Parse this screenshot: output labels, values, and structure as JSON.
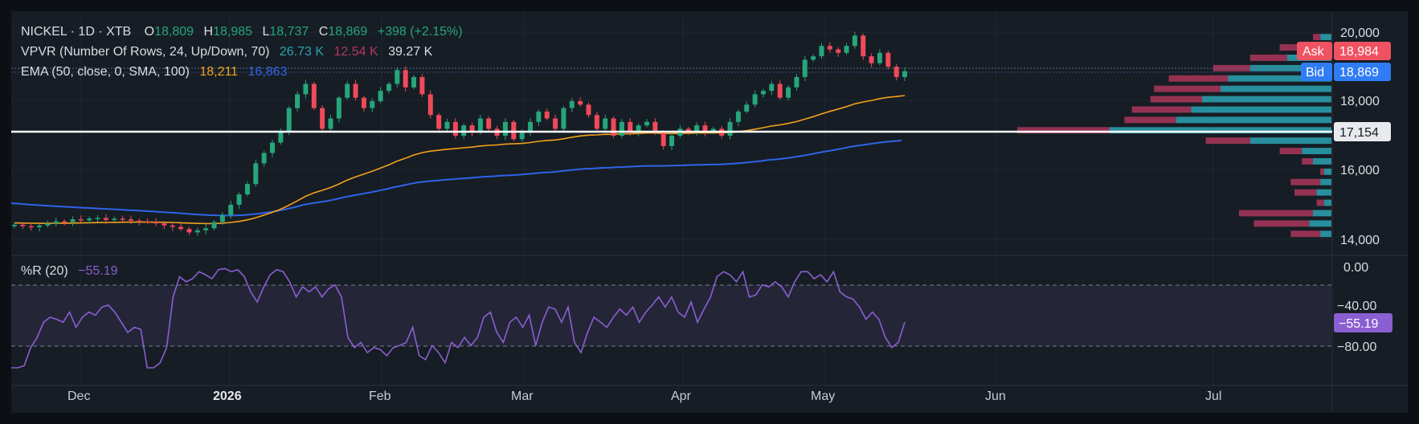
{
  "legend": {
    "symbol": "NICKEL · 1D · XTB",
    "o_label": "O",
    "o_value": "18,809",
    "h_label": "H",
    "h_value": "18,985",
    "l_label": "L",
    "l_value": "18,737",
    "c_label": "C",
    "c_value": "18,869",
    "change": "+398 (+2.15%)",
    "vpvr_label": "VPVR (Number Of Rows, 24, Up/Down, 70)",
    "vpvr_up": "26.73 K",
    "vpvr_down": "12.54 K",
    "vpvr_total": "39.27 K",
    "ema_label": "EMA (50, close, 0, SMA, 100)",
    "ema_fast": "18,211",
    "ema_slow": "16,863",
    "wr_label": "%R (20)",
    "wr_value": "−55.19"
  },
  "badges": {
    "ask_label": "Ask",
    "ask_value": "18,984",
    "bid_label": "Bid",
    "bid_value": "18,869",
    "hline_value": "17,154",
    "wr_value": "−55.19"
  },
  "colors": {
    "background": "#161d24",
    "up": "#26a67a",
    "down": "#ef4a5a",
    "ema_fast": "#f3a11e",
    "ema_slow": "#2f63e8",
    "wr_line": "#8a5fd1",
    "vp_up": "#2aa3b3",
    "vp_down": "#b5385f",
    "ask": "#f05262",
    "bid": "#2f7cf4"
  },
  "chart_data": [
    {
      "type": "candlestick",
      "price_axis_ticks": [
        "20,000",
        "18,000",
        "16,000",
        "14,000"
      ],
      "ylim": [
        13600,
        20500
      ],
      "x_labels": [
        "Dec",
        "2026",
        "Feb",
        "Mar",
        "Apr",
        "May",
        "Jun",
        "Jul"
      ],
      "date_range": [
        "2025-11-20",
        "2026-05-20"
      ],
      "horizontal_line": 17154,
      "close_series_approx": [
        14420,
        14380,
        14350,
        14400,
        14460,
        14520,
        14500,
        14580,
        14550,
        14600,
        14620,
        14560,
        14600,
        14580,
        14540,
        14520,
        14500,
        14460,
        14400,
        14360,
        14300,
        14200,
        14260,
        14320,
        14500,
        14700,
        15000,
        15300,
        15600,
        16200,
        16500,
        16800,
        17100,
        17800,
        18200,
        18500,
        17800,
        17200,
        17500,
        18100,
        18500,
        18100,
        17800,
        18000,
        18300,
        18500,
        18900,
        18400,
        18700,
        18200,
        17600,
        17200,
        17400,
        17000,
        17300,
        17100,
        17500,
        17200,
        17000,
        17400,
        16900,
        17100,
        17400,
        17700,
        17500,
        17200,
        17800,
        18000,
        17900,
        17600,
        17200,
        17500,
        17000,
        17400,
        17100,
        17300,
        17400,
        17100,
        16700,
        17000,
        17200,
        17100,
        17300,
        17100,
        17200,
        17000,
        17400,
        17700,
        17900,
        18200,
        18300,
        18500,
        18100,
        18400,
        18700,
        19200,
        19300,
        19600,
        19500,
        19400,
        19600,
        19900,
        19300,
        19100,
        19400,
        19000,
        18700,
        18869
      ],
      "series": [
        {
          "name": "EMA (50, close, 0, SMA, 100)",
          "last": 18211
        },
        {
          "name": "EMA 100",
          "last": 16863
        }
      ]
    },
    {
      "type": "volume_profile",
      "total": "39.27 K",
      "up": "26.73 K",
      "down": "12.54 K",
      "rows": [
        {
          "price": 19850,
          "up": 3,
          "down": 2
        },
        {
          "price": 19550,
          "up": 6,
          "down": 8
        },
        {
          "price": 19250,
          "up": 12,
          "down": 10
        },
        {
          "price": 18950,
          "up": 22,
          "down": 10
        },
        {
          "price": 18650,
          "up": 28,
          "down": 16
        },
        {
          "price": 18350,
          "up": 30,
          "down": 18
        },
        {
          "price": 18050,
          "up": 35,
          "down": 14
        },
        {
          "price": 17750,
          "up": 38,
          "down": 16
        },
        {
          "price": 17450,
          "up": 42,
          "down": 14
        },
        {
          "price": 17150,
          "up": 60,
          "down": 25
        },
        {
          "price": 16850,
          "up": 22,
          "down": 12
        },
        {
          "price": 16550,
          "up": 8,
          "down": 6
        },
        {
          "price": 16250,
          "up": 5,
          "down": 3
        },
        {
          "price": 15950,
          "up": 2,
          "down": 1
        },
        {
          "price": 15650,
          "up": 3,
          "down": 8
        },
        {
          "price": 15350,
          "up": 4,
          "down": 6
        },
        {
          "price": 15050,
          "up": 2,
          "down": 2
        },
        {
          "price": 14750,
          "up": 5,
          "down": 20
        },
        {
          "price": 14450,
          "up": 6,
          "down": 15
        },
        {
          "price": 14150,
          "up": 3,
          "down": 8
        }
      ]
    },
    {
      "type": "line",
      "indicator": "%R (20)",
      "yaxis_ticks": [
        "0.00",
        "−40.00",
        "−80.00"
      ],
      "ylim": [
        -100,
        0
      ],
      "bands": [
        -20,
        -80
      ],
      "last": -55.19,
      "values": [
        -100,
        -100,
        -98,
        -80,
        -70,
        -55,
        -50,
        -52,
        -55,
        -45,
        -60,
        -50,
        -45,
        -48,
        -40,
        -38,
        -45,
        -55,
        -65,
        -60,
        -62,
        -100,
        -100,
        -95,
        -80,
        -30,
        -10,
        -15,
        -12,
        -5,
        -8,
        -12,
        -3,
        -2,
        -5,
        -3,
        -10,
        -25,
        -35,
        -20,
        -8,
        -3,
        -5,
        -15,
        -30,
        -20,
        -25,
        -20,
        -30,
        -22,
        -18,
        -30,
        -70,
        -80,
        -75,
        -85,
        -80,
        -82,
        -88,
        -80,
        -78,
        -75,
        -60,
        -88,
        -92,
        -78,
        -85,
        -95,
        -75,
        -80,
        -70,
        -78,
        -70,
        -50,
        -45,
        -65,
        -75,
        -55,
        -50,
        -60,
        -48,
        -78,
        -55,
        -40,
        -42,
        -55,
        -40,
        -75,
        -85,
        -65,
        -50,
        -55,
        -60,
        -50,
        -42,
        -48,
        -40,
        -55,
        -45,
        -38,
        -30,
        -40,
        -30,
        -45,
        -50,
        -35,
        -55,
        -42,
        -30,
        -10,
        -5,
        -8,
        -15,
        -5,
        -30,
        -28,
        -18,
        -20,
        -15,
        -20,
        -30,
        -15,
        -5,
        -5,
        -12,
        -8,
        -15,
        -5,
        -25,
        -30,
        -32,
        -40,
        -52,
        -45,
        -52,
        -70,
        -80,
        -75,
        -55
      ]
    }
  ]
}
